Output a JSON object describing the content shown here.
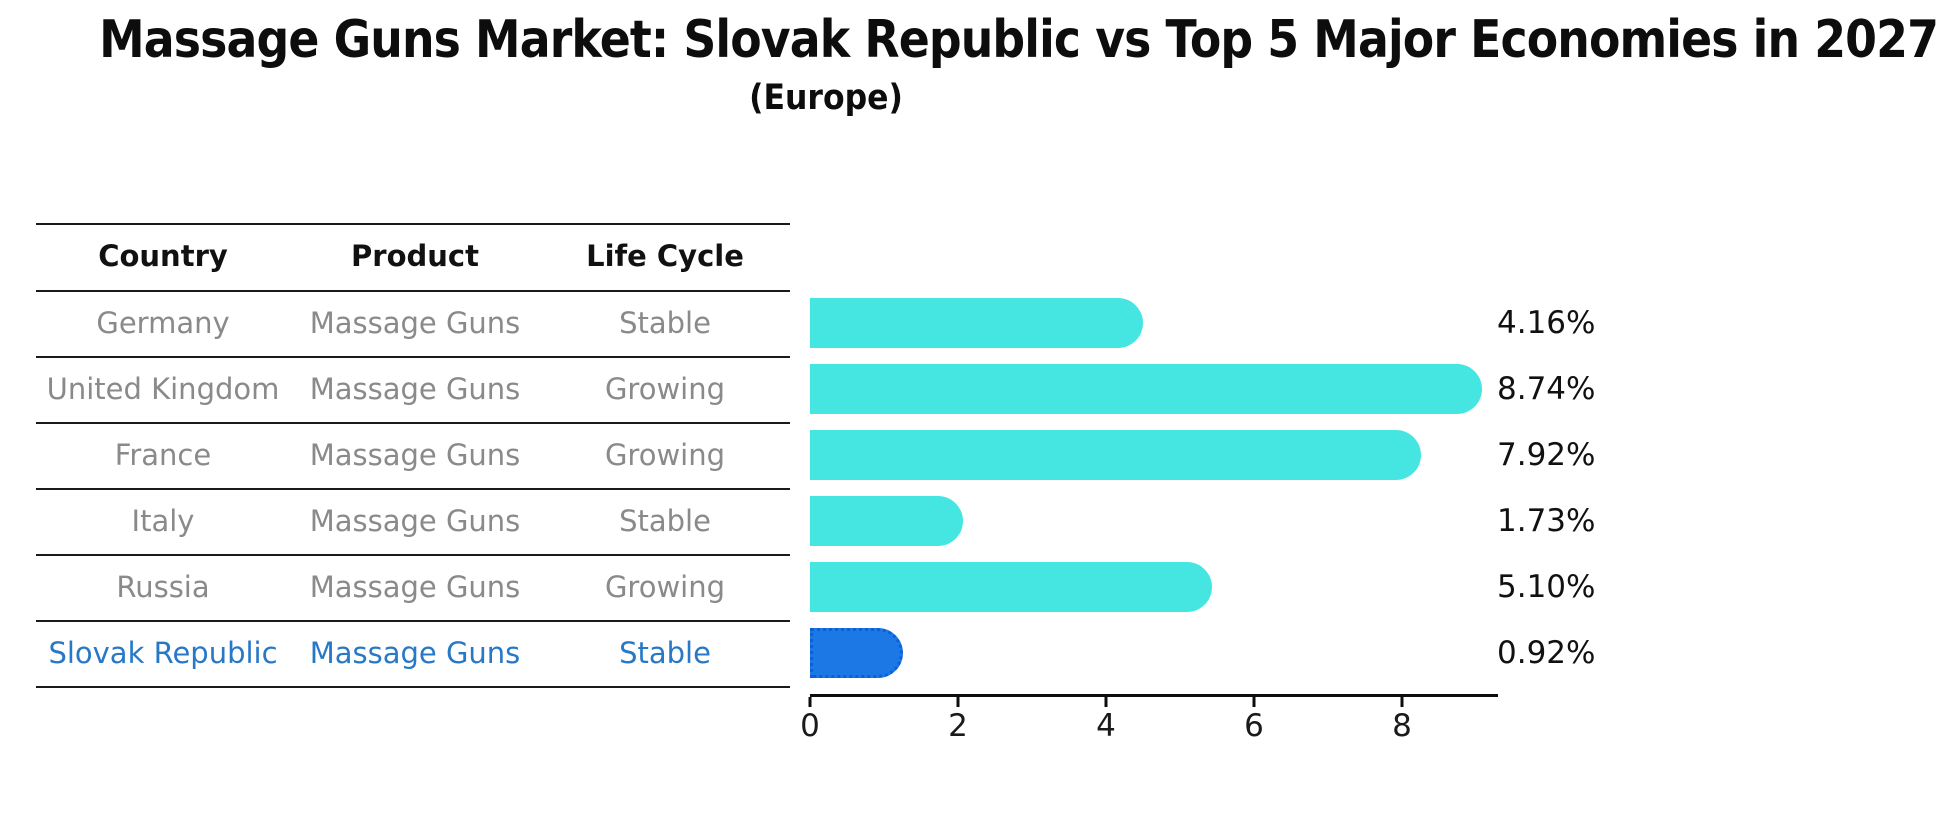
{
  "header": {
    "title": "Massage Guns Market: Slovak Republic vs Top 5 Major Economies in 2027",
    "subtitle": "(Europe)"
  },
  "table": {
    "columns": [
      "Country",
      "Product",
      "Life Cycle"
    ],
    "rows": [
      {
        "country": "Germany",
        "product": "Massage Guns",
        "life_cycle": "Stable",
        "highlight": false
      },
      {
        "country": "United Kingdom",
        "product": "Massage Guns",
        "life_cycle": "Growing",
        "highlight": false
      },
      {
        "country": "France",
        "product": "Massage Guns",
        "life_cycle": "Growing",
        "highlight": false
      },
      {
        "country": "Italy",
        "product": "Massage Guns",
        "life_cycle": "Stable",
        "highlight": false
      },
      {
        "country": "Russia",
        "product": "Massage Guns",
        "life_cycle": "Growing",
        "highlight": false
      },
      {
        "country": "Slovak Republic",
        "product": "Massage Guns",
        "life_cycle": "Stable",
        "highlight": true
      }
    ]
  },
  "chart_data": {
    "type": "bar",
    "orientation": "horizontal",
    "title": "Massage Guns Market: Slovak Republic vs Top 5 Major Economies in 2027 (Europe)",
    "categories": [
      "Germany",
      "United Kingdom",
      "France",
      "Italy",
      "Russia",
      "Slovak Republic"
    ],
    "values": [
      4.16,
      8.74,
      7.92,
      1.73,
      5.1,
      0.92
    ],
    "value_labels": [
      "4.16%",
      "8.74%",
      "7.92%",
      "1.73%",
      "5.10%",
      "0.92%"
    ],
    "highlight_index": 5,
    "xlabel": "",
    "ylabel": "",
    "xticks": [
      0,
      2,
      4,
      6,
      8
    ],
    "xlim": [
      0,
      9.3
    ],
    "grid": false,
    "legend": false,
    "bar_color": "#45e6e2",
    "highlight_bar_color": "#1b78e4",
    "highlight_text_color": "#2878c8"
  }
}
